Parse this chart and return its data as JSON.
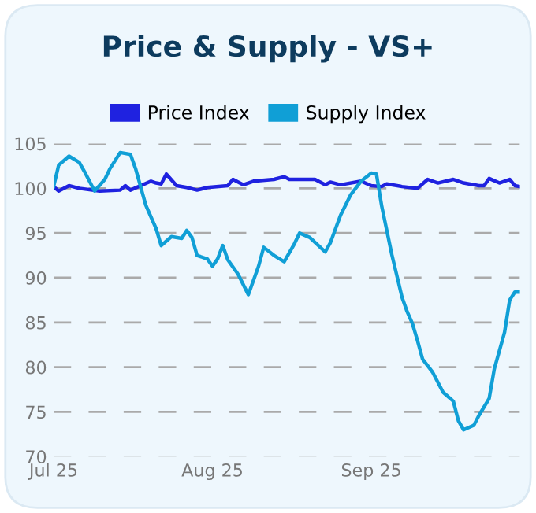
{
  "chart_data": {
    "type": "line",
    "title": "Price & Supply - VS+",
    "x": [
      "2025-07-01",
      "2025-07-02",
      "2025-07-04",
      "2025-07-06",
      "2025-07-10",
      "2025-07-14",
      "2025-07-15",
      "2025-07-16",
      "2025-07-20",
      "2025-07-21",
      "2025-07-22",
      "2025-07-23",
      "2025-07-25",
      "2025-07-27",
      "2025-07-29",
      "2025-07-31",
      "2025-08-04",
      "2025-08-05",
      "2025-08-07",
      "2025-08-09",
      "2025-08-13",
      "2025-08-15",
      "2025-08-16",
      "2025-08-21",
      "2025-08-23",
      "2025-08-24",
      "2025-08-26",
      "2025-08-30",
      "2025-09-01",
      "2025-09-03",
      "2025-09-04",
      "2025-09-07",
      "2025-09-10",
      "2025-09-12",
      "2025-09-14",
      "2025-09-17",
      "2025-09-19",
      "2025-09-22",
      "2025-09-23",
      "2025-09-24",
      "2025-09-26",
      "2025-09-28",
      "2025-09-29",
      "2025-09-30"
    ],
    "series": [
      {
        "name": "Price Index",
        "color": "#1f22e0",
        "values": [
          100.2,
          99.7,
          100.3,
          100.0,
          99.7,
          99.8,
          100.3,
          99.8,
          100.8,
          100.6,
          100.5,
          101.6,
          100.3,
          100.1,
          99.8,
          100.1,
          100.3,
          101.0,
          100.4,
          100.8,
          101.0,
          101.3,
          101.0,
          101.0,
          100.4,
          100.7,
          100.4,
          100.8,
          100.3,
          100.2,
          100.5,
          100.2,
          100.0,
          101.0,
          100.6,
          101.0,
          100.6,
          100.3,
          100.3,
          101.1,
          100.6,
          101.0,
          100.3,
          100.2
        ]
      },
      {
        "name": "Supply Index",
        "color": "#109fd6",
        "x": [
          "2025-07-01",
          "2025-07-02",
          "2025-07-04",
          "2025-07-06",
          "2025-07-07",
          "2025-07-09",
          "2025-07-11",
          "2025-07-12",
          "2025-07-14",
          "2025-07-16",
          "2025-07-17",
          "2025-07-19",
          "2025-07-21",
          "2025-07-22",
          "2025-07-24",
          "2025-07-26",
          "2025-07-27",
          "2025-07-28",
          "2025-07-29",
          "2025-07-31",
          "2025-08-01",
          "2025-08-02",
          "2025-08-03",
          "2025-08-04",
          "2025-08-06",
          "2025-08-08",
          "2025-08-10",
          "2025-08-11",
          "2025-08-13",
          "2025-08-15",
          "2025-08-17",
          "2025-08-18",
          "2025-08-20",
          "2025-08-23",
          "2025-08-24",
          "2025-08-26",
          "2025-08-28",
          "2025-08-30",
          "2025-09-01",
          "2025-09-02",
          "2025-09-03",
          "2025-09-05",
          "2025-09-07",
          "2025-09-08",
          "2025-09-09",
          "2025-09-10",
          "2025-09-11",
          "2025-09-13",
          "2025-09-15",
          "2025-09-17",
          "2025-09-18",
          "2025-09-19",
          "2025-09-21",
          "2025-09-22",
          "2025-09-24",
          "2025-09-25",
          "2025-09-27",
          "2025-09-28",
          "2025-09-29",
          "2025-09-30"
        ],
        "values": [
          100.2,
          102.6,
          103.6,
          102.9,
          101.9,
          99.7,
          101.0,
          102.2,
          104.0,
          103.8,
          102.2,
          98.1,
          95.5,
          93.6,
          94.6,
          94.4,
          95.3,
          94.5,
          92.5,
          92.1,
          91.3,
          92.1,
          93.6,
          92.0,
          90.4,
          88.1,
          91.3,
          93.4,
          92.5,
          91.8,
          93.8,
          95.0,
          94.5,
          92.9,
          93.9,
          97.0,
          99.3,
          100.8,
          101.7,
          101.6,
          98.1,
          92.6,
          87.8,
          86.2,
          84.9,
          83.0,
          80.9,
          79.4,
          77.2,
          76.2,
          74.0,
          73.0,
          73.5,
          74.6,
          76.5,
          79.8,
          83.9,
          87.5,
          88.4,
          88.4
        ]
      }
    ],
    "xlim": [
      "2025-07-01",
      "2025-09-30"
    ],
    "xticks": [
      {
        "value": "2025-07-01",
        "label": "Jul 25"
      },
      {
        "value": "2025-08-01",
        "label": "Aug 25"
      },
      {
        "value": "2025-09-01",
        "label": "Sep 25"
      }
    ],
    "ylim": [
      70,
      105
    ],
    "yticks": [
      70,
      75,
      80,
      85,
      90,
      95,
      100,
      105
    ],
    "grid": "y",
    "legend": "top",
    "marker": "none",
    "line_style": "solid"
  }
}
